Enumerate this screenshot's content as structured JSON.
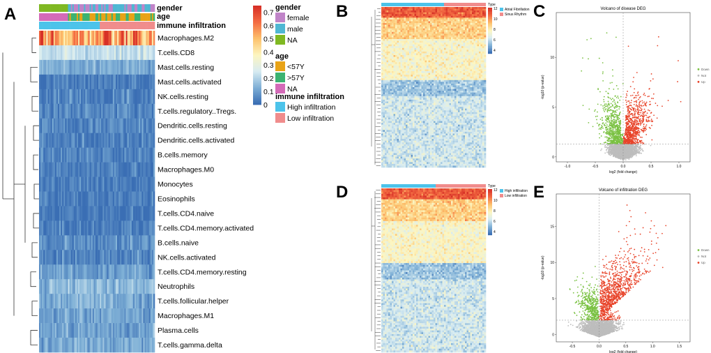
{
  "panels": {
    "A": "A",
    "B": "B",
    "C": "C",
    "D": "D",
    "E": "E"
  },
  "chart_data": [
    {
      "type": "heatmap",
      "panel": "A",
      "annotation_tracks": [
        "gender",
        "age",
        "immune infiltration"
      ],
      "rows": [
        "Macrophages.M2",
        "T.cells.CD8",
        "Mast.cells.resting",
        "Mast.cells.activated",
        "NK.cells.resting",
        "T.cells.regulatory..Tregs.",
        "Dendritic.cells.resting",
        "Dendritic.cells.activated",
        "B.cells.memory",
        "Macrophages.M0",
        "Monocytes",
        "Eosinophils",
        "T.cells.CD4.naive",
        "T.cells.CD4.memory.activated",
        "B.cells.naive",
        "NK.cells.activated",
        "T.cells.CD4.memory.resting",
        "Neutrophils",
        "T.cells.follicular.helper",
        "Macrophages.M1",
        "Plasma.cells",
        "T.cells.gamma.delta"
      ],
      "row_mean_values": [
        0.55,
        0.22,
        0.12,
        0.03,
        0.04,
        0.05,
        0.05,
        0.03,
        0.04,
        0.03,
        0.03,
        0.02,
        0.02,
        0.03,
        0.06,
        0.05,
        0.09,
        0.14,
        0.12,
        0.1,
        0.1,
        0.11
      ],
      "color_scale": {
        "ticks": [
          "0.7",
          "0.6",
          "0.5",
          "0.4",
          "0.3",
          "0.2",
          "0.1",
          "0"
        ],
        "range": [
          0,
          0.75
        ],
        "low": "#3a6eb4",
        "mid": "#fdf6c0",
        "high": "#d73027"
      },
      "legend": {
        "gender": {
          "title": "gender",
          "items": [
            {
              "label": "female",
              "color": "#c084c8"
            },
            {
              "label": "male",
              "color": "#4fb7d3"
            },
            {
              "label": "NA",
              "color": "#7fb822"
            }
          ]
        },
        "age": {
          "title": "age",
          "items": [
            {
              "label": "<57Y",
              "color": "#e8a317"
            },
            {
              "label": ">57Y",
              "color": "#3cb371"
            },
            {
              "label": "NA",
              "color": "#d46ab8"
            }
          ]
        },
        "immune": {
          "title": "immune infiltration",
          "items": [
            {
              "label": "High infiltration",
              "color": "#4cc3ea"
            },
            {
              "label": "Low infiltration",
              "color": "#f08c8c"
            }
          ]
        }
      }
    },
    {
      "type": "heatmap",
      "panel": "B",
      "legend_title": "Type",
      "legend_items": [
        {
          "label": "Atrial Fibrillation",
          "color": "#4cc3ea"
        },
        {
          "label": "Sinus Rhythm",
          "color": "#f08c8c"
        }
      ],
      "color_ticks": [
        "12",
        "10",
        "8",
        "6",
        "4"
      ]
    },
    {
      "type": "scatter",
      "panel": "C",
      "title": "Volcano of disease DEG",
      "xlabel": "log2 (fold change)",
      "ylabel": "-log10 (p-value)",
      "xticks": [
        "-1.0",
        "-0.5",
        "0.0",
        "0.5",
        "1.0"
      ],
      "yticks": [
        "0",
        "5",
        "10"
      ],
      "xlim": [
        -1.2,
        1.2
      ],
      "ylim": [
        -0.5,
        14.5
      ],
      "threshold_p": 1.3,
      "threshold_fc": 0,
      "legend": [
        {
          "label": "Down",
          "color": "#7ac142"
        },
        {
          "label": "Not",
          "color": "#bdbdbd"
        },
        {
          "label": "Up",
          "color": "#e8442a"
        }
      ]
    },
    {
      "type": "heatmap",
      "panel": "D",
      "legend_title": "Type",
      "legend_items": [
        {
          "label": "High infiltration",
          "color": "#4cc3ea"
        },
        {
          "label": "Low infiltration",
          "color": "#f08c8c"
        }
      ],
      "color_ticks": [
        "12",
        "10",
        "8",
        "6",
        "4"
      ]
    },
    {
      "type": "scatter",
      "panel": "E",
      "title": "Volcano of infiltration DEG",
      "xlabel": "log2 (fold change)",
      "ylabel": "-log10 (p-value)",
      "xticks": [
        "-0.5",
        "0.0",
        "0.5",
        "1.0",
        "1.5"
      ],
      "yticks": [
        "0",
        "5",
        "10",
        "15"
      ],
      "xlim": [
        -0.8,
        1.7
      ],
      "ylim": [
        -1,
        19.5
      ],
      "threshold_p": 2,
      "threshold_fc": 0,
      "legend": [
        {
          "label": "Down",
          "color": "#7ac142"
        },
        {
          "label": "Not",
          "color": "#bdbdbd"
        },
        {
          "label": "Up",
          "color": "#e8442a"
        }
      ]
    }
  ]
}
